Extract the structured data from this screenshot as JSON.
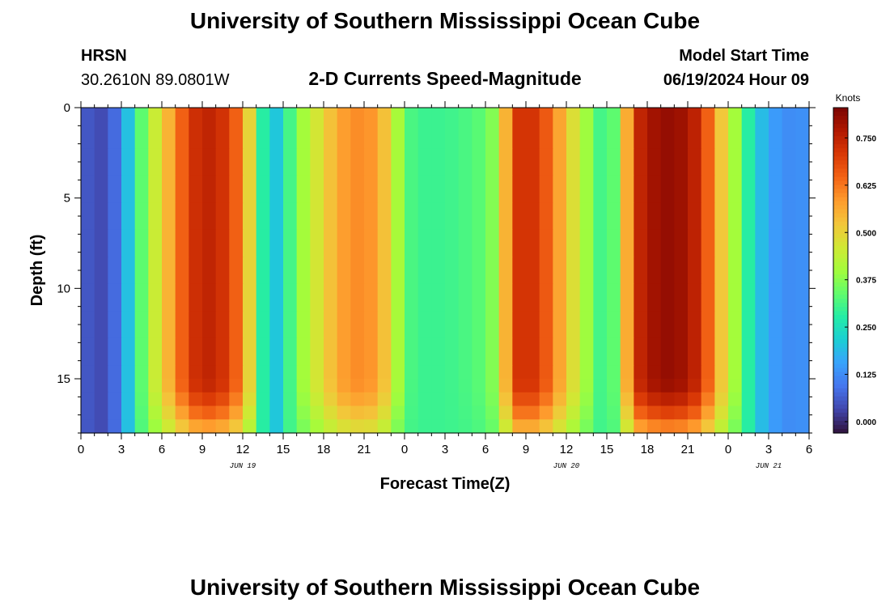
{
  "page": {
    "title": "University of Southern Mississippi Ocean Cube",
    "footer_title": "University of Southern Mississippi Ocean Cube"
  },
  "header": {
    "station": "HRSN",
    "location": "30.2610N  89.0801W",
    "subtitle": "2-D Currents Speed-Magnitude",
    "model_start_label": "Model Start Time",
    "model_start_value": "06/19/2024 Hour 09"
  },
  "chart_data": {
    "type": "heatmap",
    "title": "2-D Currents Speed-Magnitude",
    "xlabel": "Forecast Time(Z)",
    "ylabel": "Depth (ft)",
    "x_range_hours": [
      0,
      54
    ],
    "y_range_ft": [
      0,
      18
    ],
    "x_ticks": [
      "0",
      "3",
      "6",
      "9",
      "12",
      "15",
      "18",
      "21",
      "0",
      "3",
      "6",
      "9",
      "12",
      "15",
      "18",
      "21",
      "0",
      "3",
      "6"
    ],
    "y_ticks": [
      "0",
      "5",
      "10",
      "15"
    ],
    "y_tick_values": [
      0,
      5,
      10,
      15
    ],
    "day_labels": [
      {
        "label": "JUN 19",
        "hour": 12
      },
      {
        "label": "JUN 20",
        "hour": 36
      },
      {
        "label": "JUN 21",
        "hour": 51
      }
    ],
    "colorbar": {
      "unit": "Knots",
      "range": [
        -0.03,
        0.83
      ],
      "ticks": [
        "0.000",
        "0.125",
        "0.250",
        "0.375",
        "0.500",
        "0.625",
        "0.750"
      ],
      "tick_values": [
        0,
        0.125,
        0.25,
        0.375,
        0.5,
        0.625,
        0.75
      ],
      "palette": [
        "#30123b",
        "#4145ab",
        "#4675ed",
        "#39a2fc",
        "#1bcfd4",
        "#24eca6",
        "#61fc6c",
        "#a4fc3b",
        "#d1e834",
        "#f3c63a",
        "#fe9b2d",
        "#f36315",
        "#d93806",
        "#b11901",
        "#7a0402"
      ]
    },
    "surface_speed_by_hour": [
      {
        "hour": 0,
        "knots": 0.07
      },
      {
        "hour": 1,
        "knots": 0.04
      },
      {
        "hour": 2,
        "knots": 0.04
      },
      {
        "hour": 3,
        "knots": 0.12
      },
      {
        "hour": 4,
        "knots": 0.27
      },
      {
        "hour": 5,
        "knots": 0.4
      },
      {
        "hour": 6,
        "knots": 0.5
      },
      {
        "hour": 7,
        "knots": 0.6
      },
      {
        "hour": 8,
        "knots": 0.7
      },
      {
        "hour": 9,
        "knots": 0.75
      },
      {
        "hour": 10,
        "knots": 0.74
      },
      {
        "hour": 11,
        "knots": 0.7
      },
      {
        "hour": 12,
        "knots": 0.6
      },
      {
        "hour": 13,
        "knots": 0.4
      },
      {
        "hour": 14,
        "knots": 0.16
      },
      {
        "hour": 15,
        "knots": 0.25
      },
      {
        "hour": 16,
        "knots": 0.37
      },
      {
        "hour": 17,
        "knots": 0.43
      },
      {
        "hour": 18,
        "knots": 0.5
      },
      {
        "hour": 19,
        "knots": 0.56
      },
      {
        "hour": 20,
        "knots": 0.6
      },
      {
        "hour": 21,
        "knots": 0.6
      },
      {
        "hour": 22,
        "knots": 0.58
      },
      {
        "hour": 23,
        "knots": 0.48
      },
      {
        "hour": 24,
        "knots": 0.33
      },
      {
        "hour": 25,
        "knots": 0.3
      },
      {
        "hour": 26,
        "knots": 0.3
      },
      {
        "hour": 27,
        "knots": 0.3
      },
      {
        "hour": 28,
        "knots": 0.31
      },
      {
        "hour": 29,
        "knots": 0.32
      },
      {
        "hour": 30,
        "knots": 0.34
      },
      {
        "hour": 31,
        "knots": 0.4
      },
      {
        "hour": 32,
        "knots": 0.7
      },
      {
        "hour": 33,
        "knots": 0.73
      },
      {
        "hour": 34,
        "knots": 0.7
      },
      {
        "hour": 35,
        "knots": 0.62
      },
      {
        "hour": 36,
        "knots": 0.52
      },
      {
        "hour": 37,
        "knots": 0.44
      },
      {
        "hour": 38,
        "knots": 0.35
      },
      {
        "hour": 39,
        "knots": 0.27
      },
      {
        "hour": 40,
        "knots": 0.4
      },
      {
        "hour": 41,
        "knots": 0.72
      },
      {
        "hour": 42,
        "knots": 0.77
      },
      {
        "hour": 43,
        "knots": 0.8
      },
      {
        "hour": 44,
        "knots": 0.8
      },
      {
        "hour": 45,
        "knots": 0.78
      },
      {
        "hour": 46,
        "knots": 0.72
      },
      {
        "hour": 47,
        "knots": 0.58
      },
      {
        "hour": 48,
        "knots": 0.46
      },
      {
        "hour": 49,
        "knots": 0.34
      },
      {
        "hour": 50,
        "knots": 0.22
      },
      {
        "hour": 51,
        "knots": 0.16
      },
      {
        "hour": 52,
        "knots": 0.13
      },
      {
        "hour": 53,
        "knots": 0.12
      },
      {
        "hour": 54,
        "knots": 0.14
      }
    ]
  }
}
